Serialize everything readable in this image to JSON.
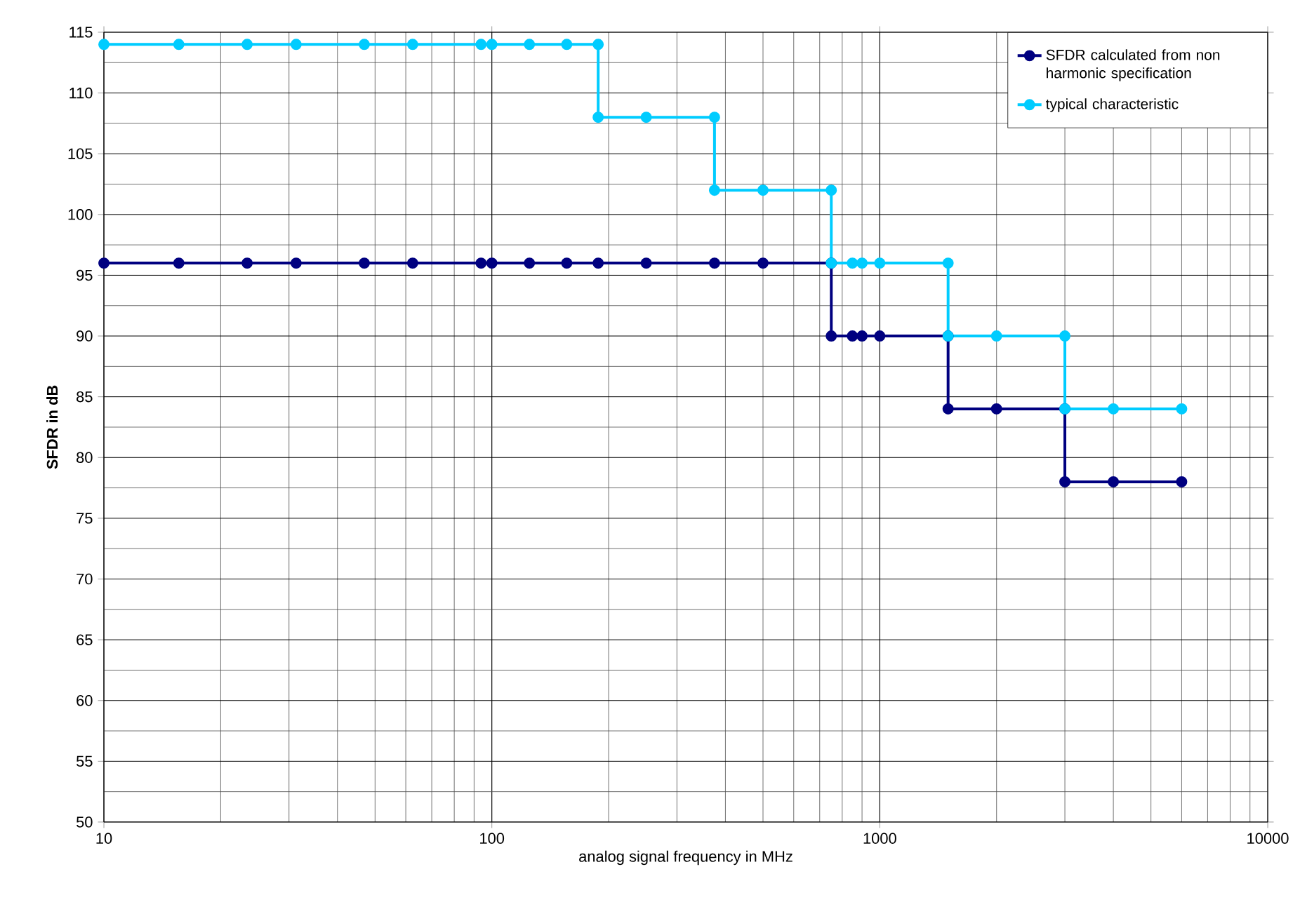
{
  "chart_data": {
    "type": "line",
    "xlabel": "analog signal frequency in MHz",
    "ylabel": "SFDR in dB",
    "log": "x",
    "xlim": [
      10,
      10000
    ],
    "xticks": [
      10,
      100,
      1000,
      10000
    ],
    "ylim": [
      50,
      115
    ],
    "yticks": [
      50,
      55,
      60,
      65,
      70,
      75,
      80,
      85,
      90,
      95,
      100,
      105,
      110,
      115
    ],
    "grid": true,
    "legend": "top right",
    "marker": "circle",
    "line_style": "solid",
    "series": [
      {
        "name": "SFDR calculated from non harmonic specification",
        "color": "#000080",
        "x": [
          10,
          15.6,
          23.4,
          31.3,
          46.9,
          62.5,
          93.8,
          100,
          125,
          156,
          188,
          250,
          375,
          500,
          750,
          750,
          850,
          900,
          1000,
          1500,
          1500,
          2000,
          3000,
          3000,
          4000,
          6000
        ],
        "values": [
          96,
          96,
          96,
          96,
          96,
          96,
          96,
          96,
          96,
          96,
          96,
          96,
          96,
          96,
          96,
          90,
          90,
          90,
          90,
          90,
          84,
          84,
          84,
          78,
          78,
          78
        ]
      },
      {
        "name": "typical characteristic",
        "color": "#00ccff",
        "x": [
          10,
          15.6,
          23.4,
          31.3,
          46.9,
          62.5,
          93.8,
          100,
          125,
          156,
          188,
          188,
          250,
          375,
          375,
          500,
          750,
          750,
          850,
          900,
          1000,
          1500,
          1500,
          2000,
          3000,
          3000,
          4000,
          6000
        ],
        "values": [
          114,
          114,
          114,
          114,
          114,
          114,
          114,
          114,
          114,
          114,
          114,
          108,
          108,
          108,
          102,
          102,
          102,
          96,
          96,
          96,
          96,
          96,
          90,
          90,
          90,
          84,
          84,
          84
        ]
      }
    ]
  }
}
